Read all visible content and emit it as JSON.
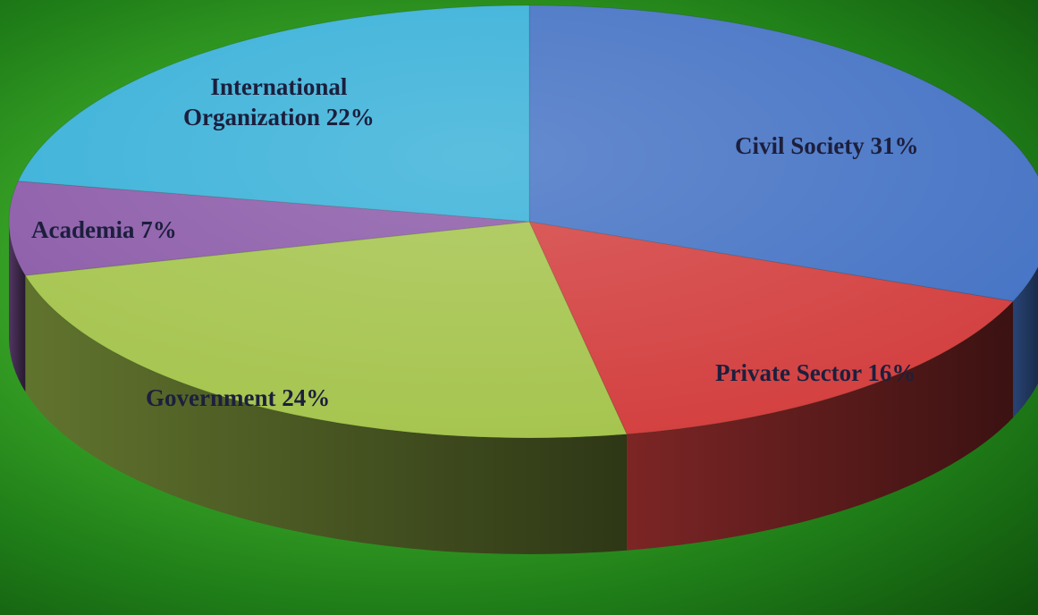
{
  "chart_data": {
    "type": "pie",
    "title": "",
    "slices": [
      {
        "label": "Civil Society",
        "value": 31,
        "display": "Civil Society 31%",
        "color": "#4472c4"
      },
      {
        "label": "Private Sector",
        "value": 16,
        "display": "Private Sector 16%",
        "color": "#d33f3f"
      },
      {
        "label": "Government",
        "value": 24,
        "display": "Government 24%",
        "color": "#a5c44d"
      },
      {
        "label": "Academia",
        "value": 7,
        "display": "Academia 7%",
        "color": "#8b5aa8"
      },
      {
        "label": "International Organization",
        "value": 22,
        "display_lines": [
          "International",
          "Organization 22%"
        ],
        "color": "#37b0d8"
      }
    ],
    "style": "3d-pie"
  }
}
